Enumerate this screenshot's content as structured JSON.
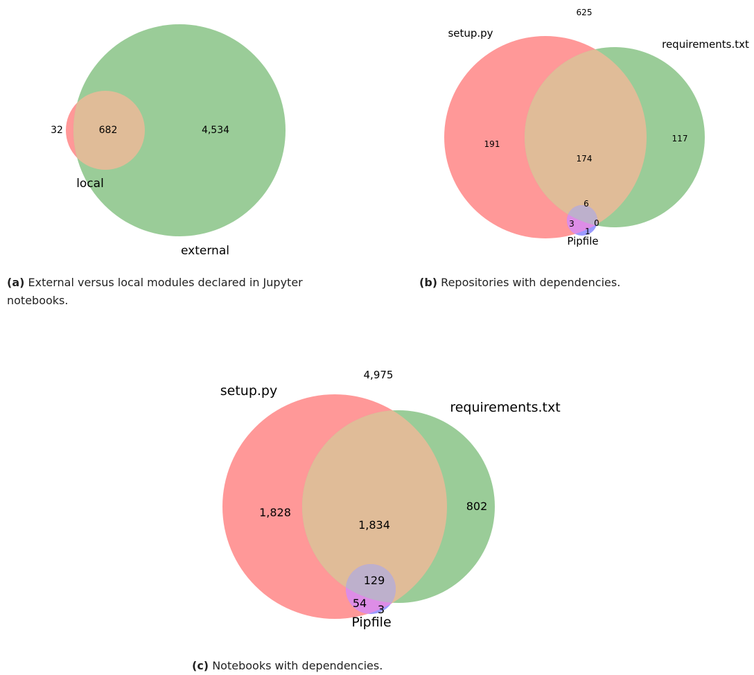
{
  "colors": {
    "red": "#ff9898",
    "green": "#9acc98",
    "overlap_red_green": "#e0bc98",
    "blue": "#9a9aff",
    "overlap_all": "#bdb0cc",
    "overlap_red_blue": "#dd8de6"
  },
  "panel_a": {
    "caption_tag": "(a)",
    "caption_text": "External versus local modules declared in Jupyter notebooks.",
    "sets": {
      "local": "local",
      "external": "external"
    },
    "values": {
      "local_only": "32",
      "both": "682",
      "external_only": "4,534"
    }
  },
  "panel_b": {
    "caption_tag": "(b)",
    "caption_text": "Repositories with dependencies.",
    "outside": "625",
    "sets": {
      "setup": "setup.py",
      "requirements": "requirements.txt",
      "pipfile": "Pipfile"
    },
    "values": {
      "setup_only": "191",
      "setup_requirements": "174",
      "requirements_only": "117",
      "all_three": "6",
      "setup_pipfile": "3",
      "requirements_pipfile": "0",
      "pipfile_only": "1"
    }
  },
  "panel_c": {
    "caption_tag": "(c)",
    "caption_text": "Notebooks with dependencies.",
    "outside": "4,975",
    "sets": {
      "setup": "setup.py",
      "requirements": "requirements.txt",
      "pipfile": "Pipfile"
    },
    "values": {
      "setup_only": "1,828",
      "setup_requirements": "1,834",
      "requirements_only": "802",
      "all_three": "129",
      "setup_pipfile": "54",
      "pipfile_only": "3"
    }
  }
}
